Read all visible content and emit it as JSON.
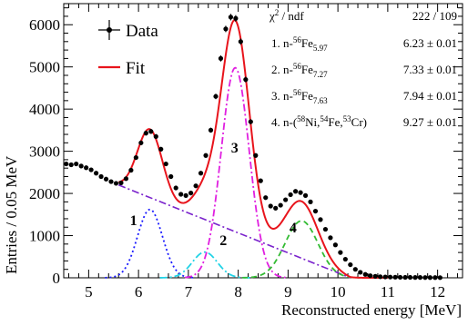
{
  "chart_data": {
    "type": "line",
    "xlabel": "Reconstructed energy [MeV]",
    "ylabel": "Entries / 0.05 MeV",
    "xlim": [
      4.5,
      12.5
    ],
    "ylim": [
      0,
      6500
    ],
    "x_ticks": [
      5,
      6,
      7,
      8,
      9,
      10,
      11,
      12
    ],
    "y_ticks": [
      0,
      1000,
      2000,
      3000,
      4000,
      5000,
      6000
    ],
    "legend": [
      {
        "label": "Data",
        "color": "#000000",
        "marker": "errorbar-dot"
      },
      {
        "label": "Fit",
        "color": "#e8141c",
        "marker": "line"
      }
    ],
    "stats": {
      "header": {
        "label": "χ² / ndf",
        "value": "222 / 109"
      },
      "rows": [
        {
          "label": "1. n-⁵⁶Fe₅.₉₇",
          "value": "6.23 ± 0.01"
        },
        {
          "label": "2. n-⁵⁶Fe₇.₂₇",
          "value": "7.33 ± 0.01"
        },
        {
          "label": "3. n-⁵⁶Fe₇.₆₃",
          "value": "7.94 ± 0.01"
        },
        {
          "label": "4. n-(⁵⁸Ni,⁵⁴Fe,⁵³Cr)",
          "value": "9.27 ± 0.01"
        }
      ]
    },
    "peak_labels": [
      {
        "text": "1",
        "x": 5.9,
        "y": 1250
      },
      {
        "text": "2",
        "x": 7.7,
        "y": 780
      },
      {
        "text": "3",
        "x": 7.93,
        "y": 2970
      },
      {
        "text": "4",
        "x": 9.1,
        "y": 1080
      }
    ],
    "components": [
      {
        "id": "1",
        "color": "#1a1aff",
        "dash": "dot",
        "mu": 6.23,
        "sigma": 0.25,
        "amp": 1620
      },
      {
        "id": "2",
        "color": "#22d3e6",
        "dash": "dashdot",
        "mu": 7.33,
        "sigma": 0.25,
        "amp": 610
      },
      {
        "id": "3",
        "color": "#e020e0",
        "dash": "dashdot",
        "mu": 7.94,
        "sigma": 0.28,
        "amp": 4980
      },
      {
        "id": "4",
        "color": "#33bb33",
        "dash": "dash",
        "mu": 9.27,
        "sigma": 0.33,
        "amp": 1350
      }
    ],
    "background": {
      "color": "#7a22cc",
      "dash": "dashdot",
      "x": [
        5.6,
        10.25
      ],
      "y": [
        2200,
        0
      ]
    },
    "data_points": {
      "x": [
        4.55,
        4.65,
        4.75,
        4.85,
        4.95,
        5.05,
        5.15,
        5.25,
        5.35,
        5.45,
        5.55,
        5.65,
        5.75,
        5.85,
        5.95,
        6.05,
        6.15,
        6.25,
        6.35,
        6.45,
        6.55,
        6.65,
        6.75,
        6.85,
        6.95,
        7.05,
        7.15,
        7.25,
        7.35,
        7.45,
        7.55,
        7.65,
        7.75,
        7.85,
        7.95,
        8.05,
        8.15,
        8.25,
        8.35,
        8.45,
        8.55,
        8.65,
        8.75,
        8.85,
        8.95,
        9.05,
        9.15,
        9.25,
        9.35,
        9.45,
        9.55,
        9.65,
        9.75,
        9.85,
        9.95,
        10.05,
        10.15,
        10.25,
        10.35,
        10.45,
        10.55,
        10.65,
        10.75,
        10.85,
        10.95,
        11.05,
        11.15,
        11.25,
        11.35,
        11.45,
        11.55,
        11.65,
        11.75,
        11.85,
        11.95,
        12.05
      ],
      "y": [
        2700,
        2680,
        2700,
        2650,
        2610,
        2560,
        2480,
        2400,
        2340,
        2280,
        2240,
        2250,
        2350,
        2550,
        2850,
        3200,
        3430,
        3470,
        3350,
        3050,
        2700,
        2400,
        2130,
        1980,
        1950,
        2010,
        2180,
        2480,
        2900,
        3500,
        4300,
        5200,
        5900,
        6180,
        6150,
        5600,
        4700,
        3700,
        2900,
        2300,
        1900,
        1700,
        1650,
        1720,
        1850,
        1970,
        2050,
        2020,
        1950,
        1800,
        1580,
        1380,
        1150,
        950,
        780,
        600,
        440,
        310,
        200,
        130,
        80,
        50,
        35,
        25,
        20,
        18,
        15,
        12,
        10,
        10,
        8,
        8,
        6,
        5,
        5,
        4
      ]
    }
  }
}
